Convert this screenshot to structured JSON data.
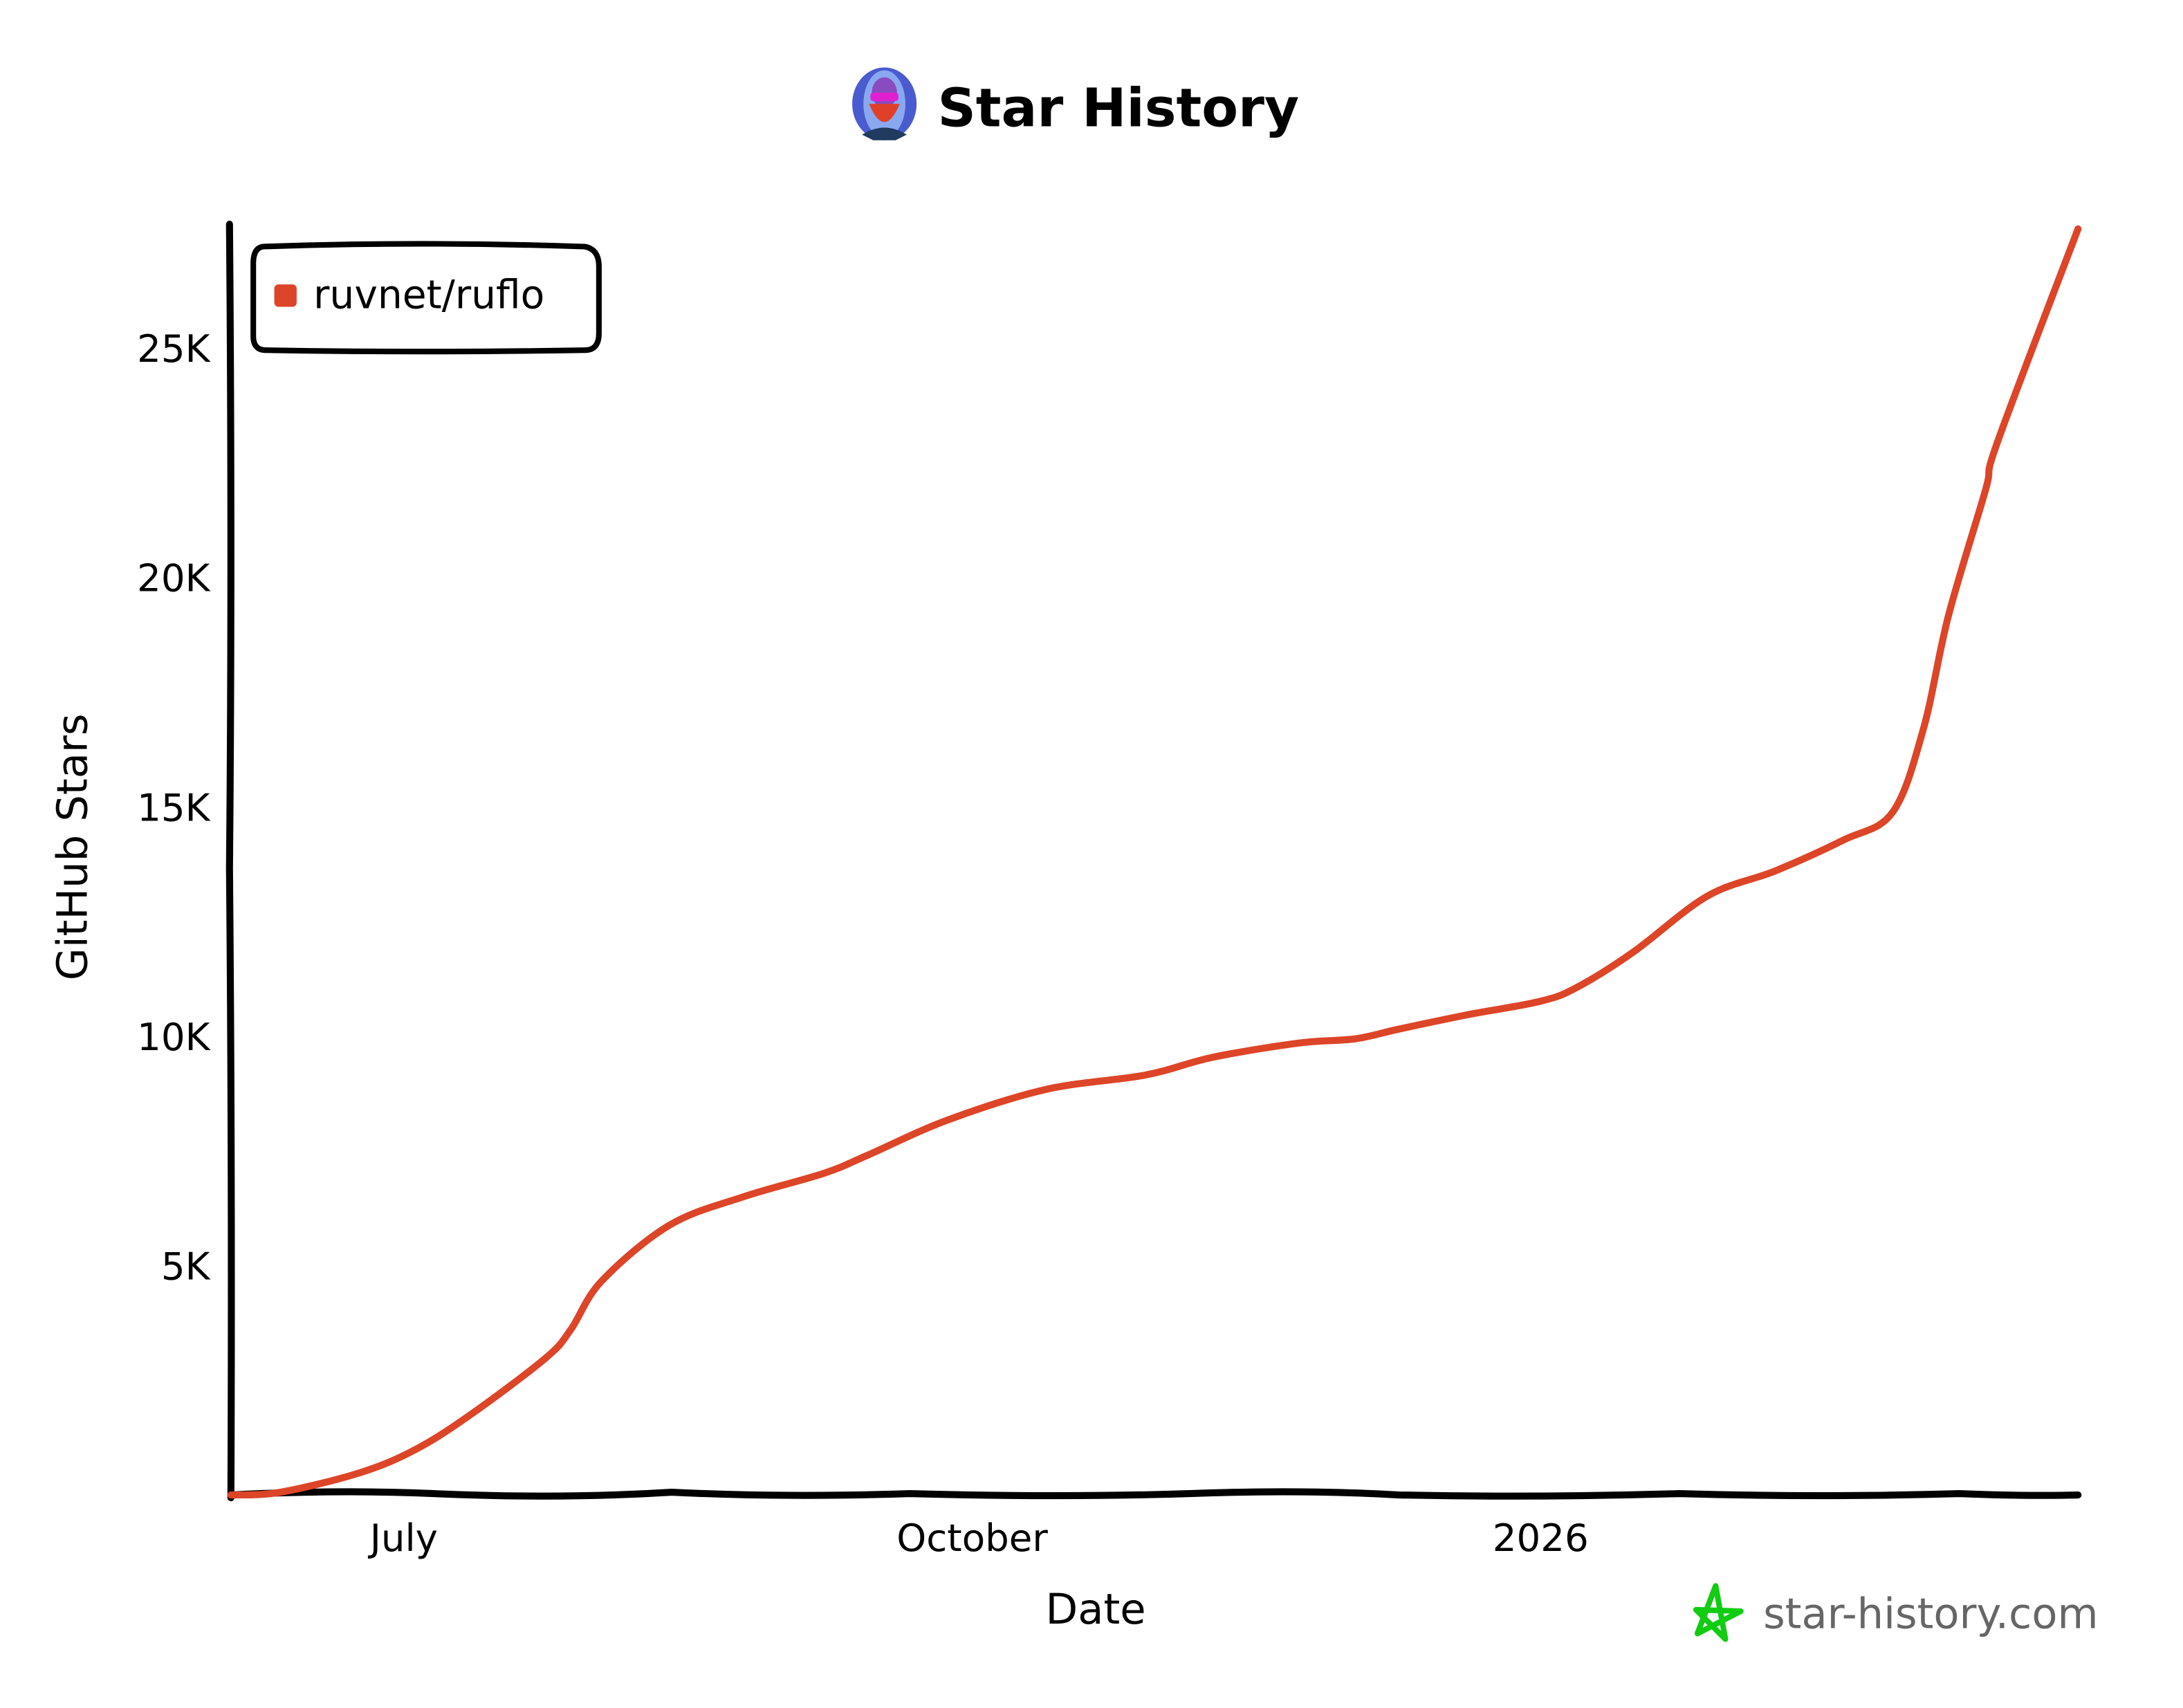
{
  "header": {
    "title": "Star History",
    "avatar_icon": "user-avatar"
  },
  "watermark": {
    "text": "star-history.com",
    "icon": "star-icon",
    "icon_color": "#11cc11"
  },
  "chart_data": {
    "type": "line",
    "title": "Star History",
    "xlabel": "Date",
    "ylabel": "GitHub Stars",
    "x_ticks": [
      {
        "label": "July",
        "date": "2025-07-01"
      },
      {
        "label": "October",
        "date": "2025-10-01"
      },
      {
        "label": "2026",
        "date": "2026-01-01"
      }
    ],
    "y_ticks": [
      {
        "label": "5K",
        "value": 5000
      },
      {
        "label": "10K",
        "value": 10000
      },
      {
        "label": "15K",
        "value": 15000
      },
      {
        "label": "20K",
        "value": 20000
      },
      {
        "label": "25K",
        "value": 25000
      }
    ],
    "xlim": [
      "2025-06-03",
      "2026-03-29"
    ],
    "ylim": [
      0,
      27600
    ],
    "grid": false,
    "legend_position": "top-left",
    "series": [
      {
        "name": "ruvnet/ruflo",
        "color": "#dd4528",
        "points": [
          [
            "2025-06-03",
            0
          ],
          [
            "2025-06-11",
            60
          ],
          [
            "2025-06-24",
            490
          ],
          [
            "2025-07-03",
            1000
          ],
          [
            "2025-07-12",
            1770
          ],
          [
            "2025-07-24",
            2990
          ],
          [
            "2025-07-28",
            3600
          ],
          [
            "2025-08-02",
            4660
          ],
          [
            "2025-08-13",
            5880
          ],
          [
            "2025-08-25",
            6500
          ],
          [
            "2025-09-07",
            7010
          ],
          [
            "2025-09-14",
            7400
          ],
          [
            "2025-09-27",
            8170
          ],
          [
            "2025-10-13",
            8840
          ],
          [
            "2025-10-29",
            9150
          ],
          [
            "2025-11-09",
            9540
          ],
          [
            "2025-11-23",
            9850
          ],
          [
            "2025-12-02",
            9940
          ],
          [
            "2025-12-09",
            10150
          ],
          [
            "2025-12-20",
            10460
          ],
          [
            "2026-01-01",
            10760
          ],
          [
            "2026-01-07",
            11070
          ],
          [
            "2026-01-16",
            11830
          ],
          [
            "2026-01-28",
            13050
          ],
          [
            "2026-02-08",
            13600
          ],
          [
            "2026-02-19",
            14270
          ],
          [
            "2026-02-27",
            14880
          ],
          [
            "2026-03-04",
            16710
          ],
          [
            "2026-03-08",
            19150
          ],
          [
            "2026-03-14",
            21890
          ],
          [
            "2026-03-16",
            22960
          ],
          [
            "2026-03-29",
            27590
          ]
        ]
      }
    ]
  }
}
